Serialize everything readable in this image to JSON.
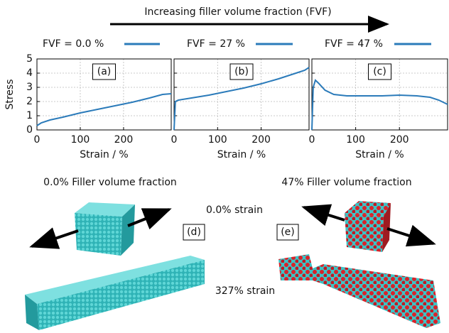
{
  "header": {
    "title": "Increasing filler volume fraction (FVF)"
  },
  "chart_data": [
    {
      "type": "line",
      "label": "(a)",
      "ylabel": "Stress",
      "xlabel": "Strain / %",
      "x": [
        0,
        10,
        30,
        60,
        100,
        140,
        180,
        220,
        260,
        290,
        310
      ],
      "series": [
        {
          "name": "FVF = 0.0 %",
          "color": "#2b7bba",
          "values": [
            0.3,
            0.5,
            0.7,
            0.9,
            1.2,
            1.45,
            1.7,
            1.95,
            2.25,
            2.5,
            2.55
          ]
        }
      ],
      "xlim": [
        0,
        310
      ],
      "ylim": [
        0,
        5
      ],
      "xticks": [
        0,
        100,
        200
      ],
      "yticks": [
        0,
        1,
        2,
        3,
        4,
        5
      ],
      "grid": true
    },
    {
      "type": "line",
      "label": "(b)",
      "xlabel": "Strain / %",
      "x": [
        0,
        3,
        10,
        40,
        80,
        120,
        160,
        200,
        240,
        280,
        300,
        310
      ],
      "series": [
        {
          "name": "FVF = 27 %",
          "color": "#2b7bba",
          "values": [
            0,
            2.0,
            2.1,
            2.25,
            2.45,
            2.7,
            2.95,
            3.25,
            3.6,
            4.0,
            4.2,
            4.4
          ]
        }
      ],
      "xlim": [
        0,
        310
      ],
      "ylim": [
        0,
        5
      ],
      "xticks": [
        0,
        100,
        200
      ],
      "yticks": [
        0,
        1,
        2,
        3,
        4,
        5
      ],
      "grid": true
    },
    {
      "type": "line",
      "label": "(c)",
      "xlabel": "Strain / %",
      "x": [
        0,
        3,
        8,
        15,
        30,
        50,
        80,
        120,
        160,
        200,
        240,
        270,
        290,
        310
      ],
      "series": [
        {
          "name": "FVF = 47 %",
          "color": "#2b7bba",
          "values": [
            0,
            3.0,
            3.5,
            3.3,
            2.8,
            2.5,
            2.4,
            2.4,
            2.4,
            2.45,
            2.4,
            2.3,
            2.1,
            1.8
          ]
        }
      ],
      "xlim": [
        0,
        310
      ],
      "ylim": [
        0,
        5
      ],
      "xticks": [
        0,
        100,
        200
      ],
      "yticks": [
        0,
        1,
        2,
        3,
        4,
        5
      ],
      "grid": true
    }
  ],
  "panels": [
    {
      "title": "0.0% Filler volume fraction",
      "label": "(d)"
    },
    {
      "title": "47% Filler volume fraction",
      "label": "(e)"
    }
  ],
  "strains": [
    "0.0% strain",
    "327% strain"
  ]
}
